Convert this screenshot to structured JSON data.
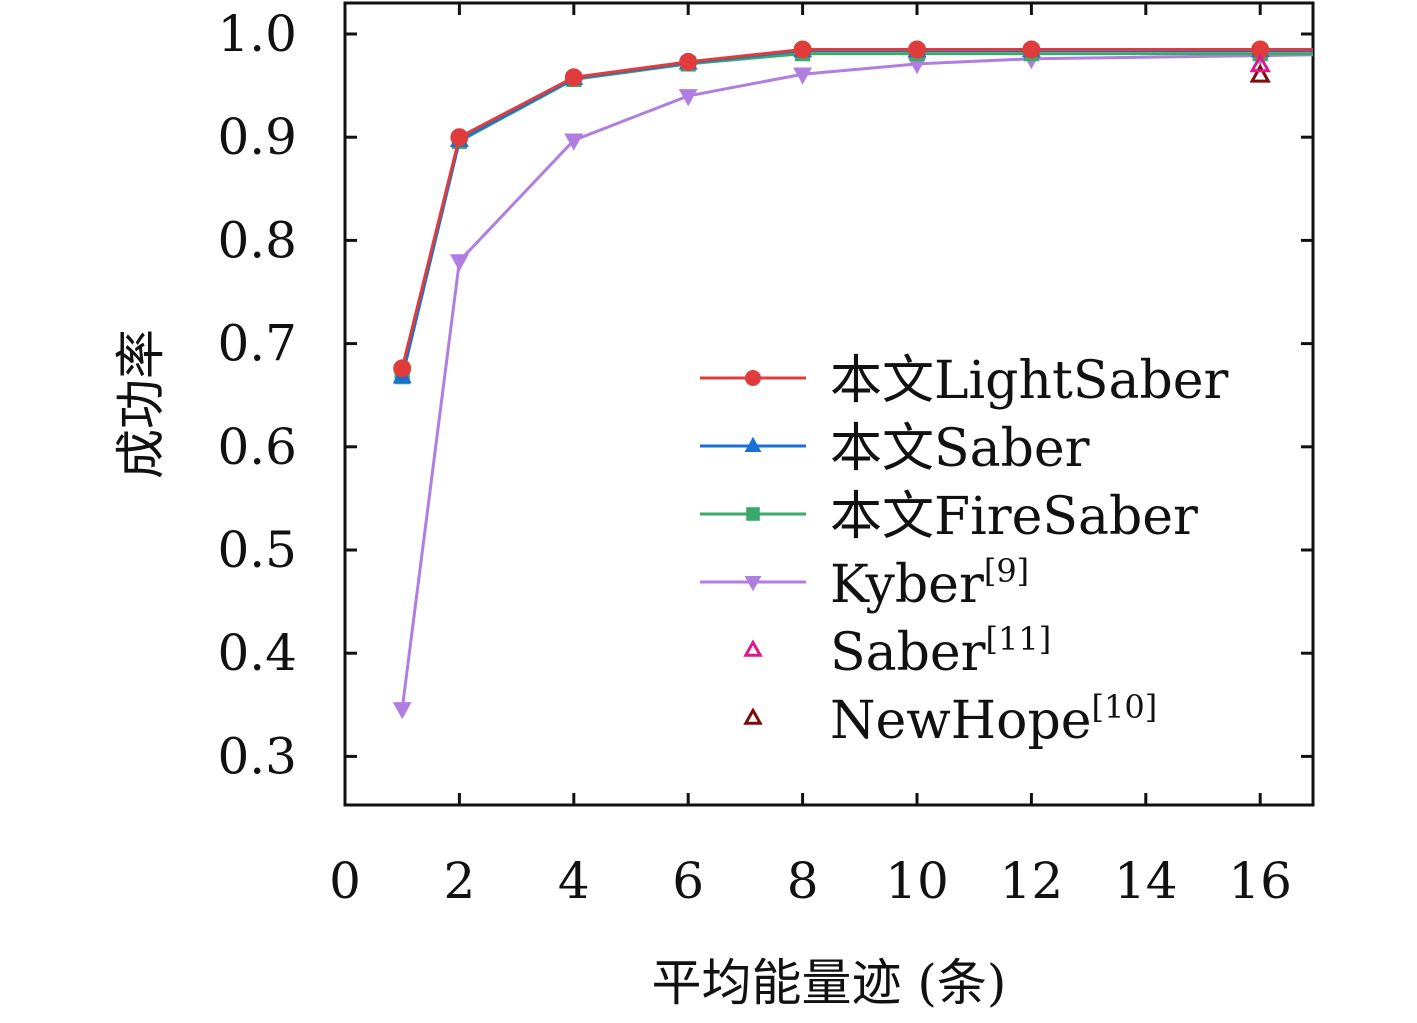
{
  "chart_data": {
    "type": "line",
    "title": "",
    "xlabel": "平均能量迹 (条)",
    "ylabel": "成功率",
    "xlim": [
      0,
      17
    ],
    "ylim": [
      0.25,
      1.03
    ],
    "xticks": [
      0,
      2,
      4,
      6,
      8,
      10,
      12,
      14,
      16
    ],
    "yticks": [
      0.3,
      0.4,
      0.5,
      0.6,
      0.7,
      0.8,
      0.9,
      1.0
    ],
    "xtick_labels": [
      "0",
      "2",
      "4",
      "6",
      "8",
      "10",
      "12",
      "14",
      "16"
    ],
    "ytick_labels": [
      "0.3",
      "0.4",
      "0.5",
      "0.6",
      "0.7",
      "0.8",
      "0.9",
      "1.0"
    ],
    "grid": false,
    "legend_position": "right",
    "series": [
      {
        "name": "本文LightSaber",
        "legend_main": "本文LightSaber",
        "legend_sup": "",
        "color": "#e03c3c",
        "marker": "circle",
        "line": true,
        "x": [
          1,
          2,
          4,
          6,
          8,
          10,
          12,
          16,
          17
        ],
        "y": [
          0.676,
          0.9,
          0.958,
          0.973,
          0.985,
          0.985,
          0.985,
          0.985,
          0.985
        ]
      },
      {
        "name": "本文Saber",
        "legend_main": "本文Saber",
        "legend_sup": "",
        "color": "#1a6fd6",
        "marker": "triangle-up",
        "line": true,
        "x": [
          1,
          2,
          4,
          6,
          8,
          10,
          12,
          16,
          17
        ],
        "y": [
          0.668,
          0.897,
          0.957,
          0.972,
          0.984,
          0.984,
          0.984,
          0.984,
          0.984
        ]
      },
      {
        "name": "本文FireSaber",
        "legend_main": "本文FireSaber",
        "legend_sup": "",
        "color": "#3aaa6a",
        "marker": "square",
        "line": true,
        "x": [
          1,
          2,
          4,
          6,
          8,
          10,
          12,
          16,
          17
        ],
        "y": [
          0.668,
          0.896,
          0.956,
          0.971,
          0.981,
          0.981,
          0.981,
          0.981,
          0.981
        ]
      },
      {
        "name": "Kyber[9]",
        "legend_main": "Kyber",
        "legend_sup": "[9]",
        "color": "#b07ee0",
        "marker": "triangle-down",
        "line": true,
        "x": [
          1,
          2,
          4,
          6,
          8,
          10,
          12,
          16,
          17
        ],
        "y": [
          0.346,
          0.78,
          0.897,
          0.94,
          0.961,
          0.971,
          0.976,
          0.979,
          0.98
        ]
      },
      {
        "name": "Saber[11]",
        "legend_main": "Saber",
        "legend_sup": "[11]",
        "color": "#e0178a",
        "marker": "triangle-up-open",
        "line": false,
        "x": [
          16
        ],
        "y": [
          0.97
        ]
      },
      {
        "name": "NewHope[10]",
        "legend_main": "NewHope",
        "legend_sup": "[10]",
        "color": "#7a0c0c",
        "marker": "triangle-up-open",
        "line": false,
        "x": [
          16
        ],
        "y": [
          0.96
        ]
      }
    ]
  }
}
